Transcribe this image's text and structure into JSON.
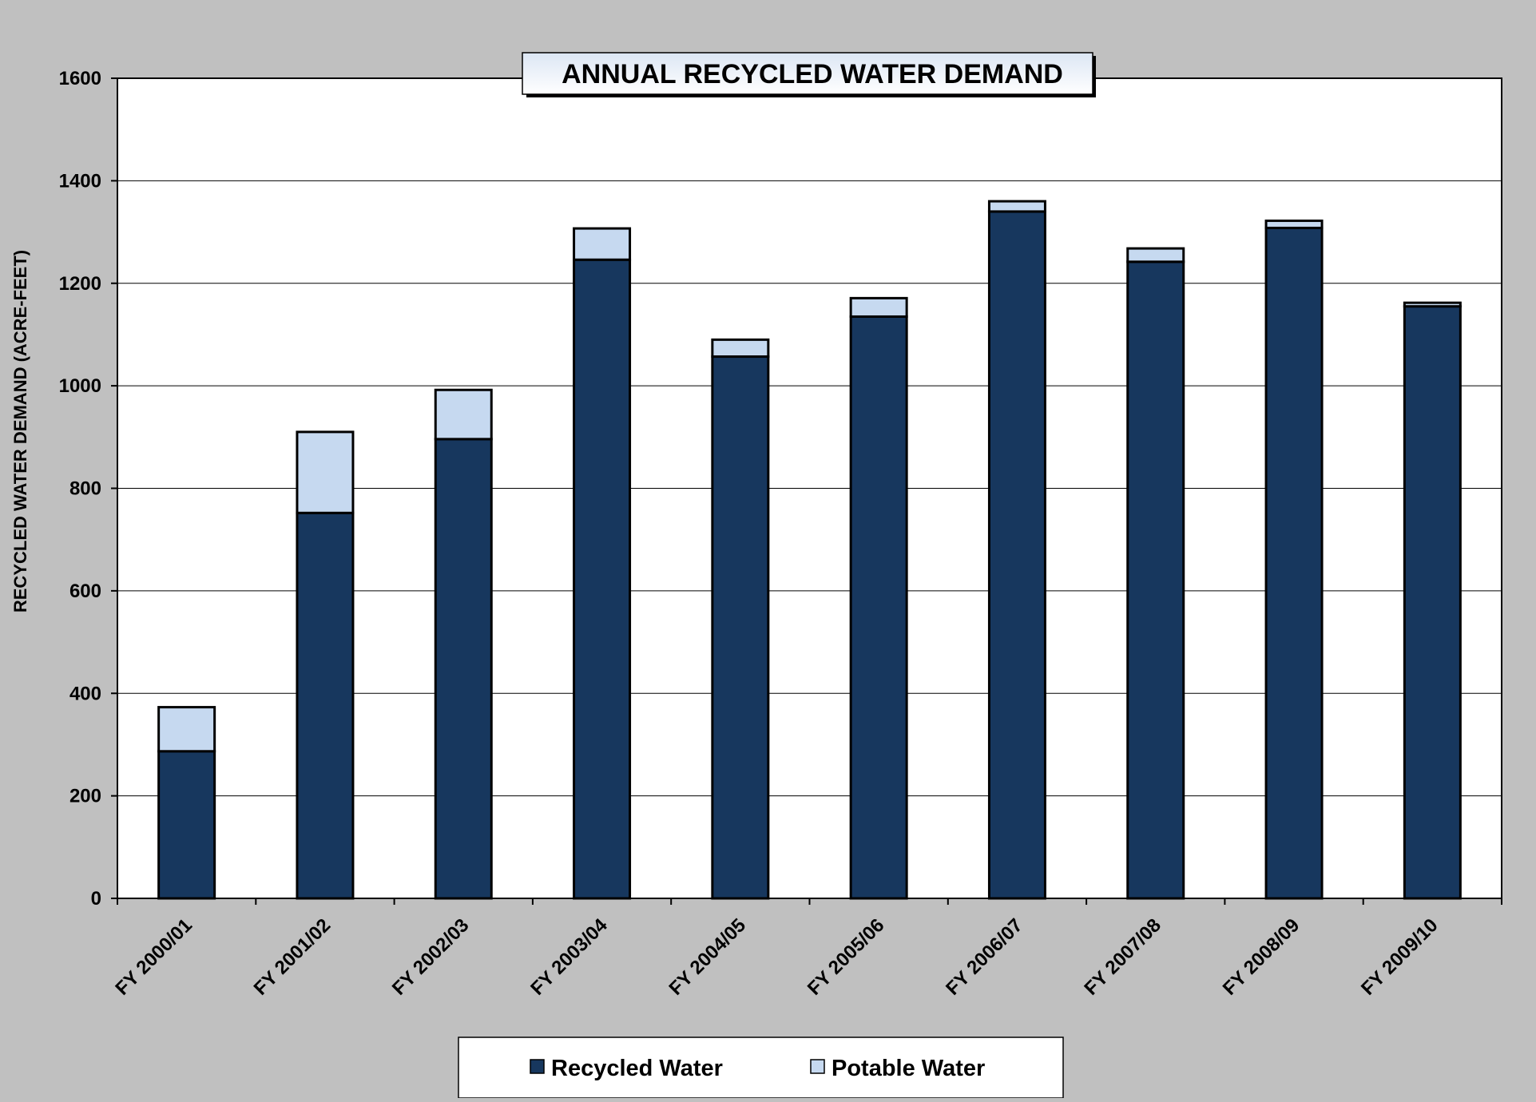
{
  "chart_data": {
    "type": "bar",
    "stacked": true,
    "title": "ANNUAL RECYCLED WATER DEMAND",
    "xlabel": "",
    "ylabel": "RECYCLED WATER DEMAND (ACRE-FEET)",
    "ylim": [
      0,
      1600
    ],
    "yticks": [
      0,
      200,
      400,
      600,
      800,
      1000,
      1200,
      1400,
      1600
    ],
    "grid": true,
    "legend_position": "bottom",
    "categories": [
      "FY 2000/01",
      "FY 2001/02",
      "FY 2002/03",
      "FY 2003/04",
      "FY 2004/05",
      "FY 2005/06",
      "FY 2006/07",
      "FY 2007/08",
      "FY 2008/09",
      "FY 2009/10"
    ],
    "series": [
      {
        "name": "Recycled Water",
        "color": "#17375e",
        "values": [
          287,
          752,
          896,
          1246,
          1057,
          1135,
          1340,
          1242,
          1308,
          1155
        ]
      },
      {
        "name": "Potable Water",
        "color": "#c6d9f0",
        "values": [
          86,
          158,
          96,
          61,
          33,
          36,
          20,
          26,
          14,
          7
        ]
      }
    ]
  }
}
